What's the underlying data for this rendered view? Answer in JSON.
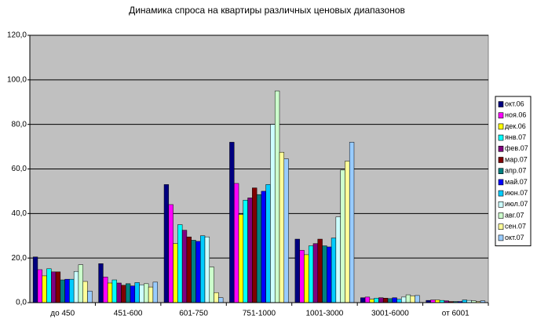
{
  "chart_data": {
    "type": "bar",
    "title": "Динамика спроса на квартиры различных ценовых диапазонов",
    "categories": [
      "до 450",
      "451-600",
      "601-750",
      "751-1000",
      "1001-3000",
      "3001-6000",
      "от 6001"
    ],
    "series": [
      {
        "name": "окт.06",
        "color": "#000080",
        "values": [
          20.5,
          17.5,
          53,
          72,
          28.5,
          2.2,
          1
        ]
      },
      {
        "name": "ноя.06",
        "color": "#ff00ff",
        "values": [
          14.8,
          11.5,
          44,
          53.5,
          23.5,
          2.5,
          1.2
        ]
      },
      {
        "name": "дек.06",
        "color": "#ffff00",
        "values": [
          12,
          8.8,
          26.5,
          39.5,
          21.5,
          1.5,
          1.2
        ]
      },
      {
        "name": "янв.07",
        "color": "#00ffff",
        "values": [
          15.2,
          10.2,
          35,
          46,
          25.5,
          2,
          1
        ]
      },
      {
        "name": "фев.07",
        "color": "#800080",
        "values": [
          13.8,
          8.8,
          32.5,
          47,
          26.5,
          2.2,
          0.8
        ]
      },
      {
        "name": "мар.07",
        "color": "#800000",
        "values": [
          13.8,
          7.8,
          29.5,
          51.5,
          28.5,
          2,
          0.5
        ]
      },
      {
        "name": "апр.07",
        "color": "#008080",
        "values": [
          10.2,
          8.5,
          28,
          48.5,
          25.5,
          1.8,
          0.5
        ]
      },
      {
        "name": "май.07",
        "color": "#0000ff",
        "values": [
          10.5,
          7.5,
          27.5,
          50,
          25,
          2.2,
          0.5
        ]
      },
      {
        "name": "июн.07",
        "color": "#00ccff",
        "values": [
          10.5,
          9,
          30,
          53,
          29,
          1.5,
          1.2
        ]
      },
      {
        "name": "июл.07",
        "color": "#ccffff",
        "values": [
          14,
          8,
          29.5,
          80,
          38.5,
          2.5,
          1
        ]
      },
      {
        "name": "авг.07",
        "color": "#ccffcc",
        "values": [
          17,
          8.5,
          16,
          95,
          59.5,
          3.5,
          0.8
        ]
      },
      {
        "name": "сен.07",
        "color": "#ffff99",
        "values": [
          9.5,
          7,
          4.5,
          67.5,
          63.5,
          3,
          0.5
        ]
      },
      {
        "name": "окт.07",
        "color": "#99ccff",
        "values": [
          5.2,
          9.2,
          2.2,
          64.5,
          72,
          3.2,
          0.8
        ]
      }
    ],
    "ylim": [
      0,
      120
    ],
    "yticks": [
      {
        "value": 0,
        "label": "0,0"
      },
      {
        "value": 20,
        "label": "20,0"
      },
      {
        "value": 40,
        "label": "40,0"
      },
      {
        "value": 60,
        "label": "60,0"
      },
      {
        "value": 80,
        "label": "80,0"
      },
      {
        "value": 100,
        "label": "100,0"
      },
      {
        "value": 120,
        "label": "120,0"
      }
    ],
    "grid": true,
    "legend": "right",
    "plot_background": "#c0c0c0"
  }
}
